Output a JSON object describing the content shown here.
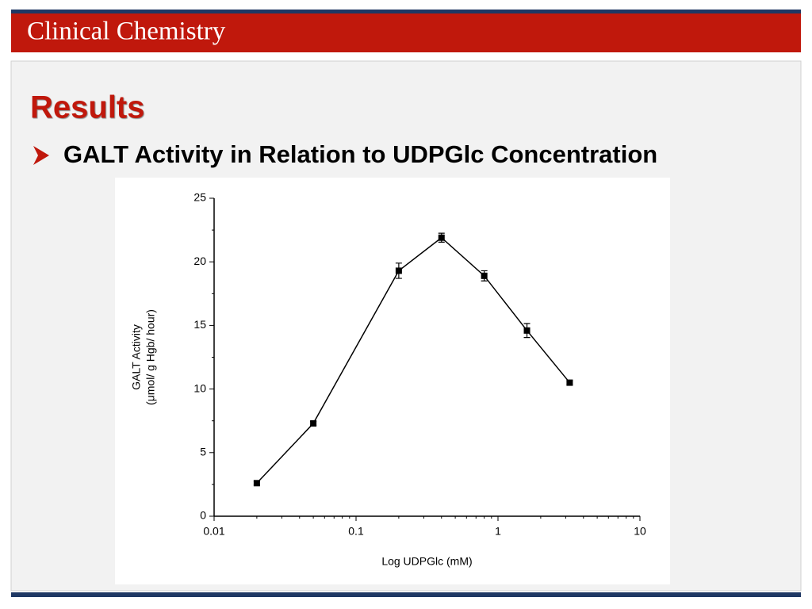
{
  "header": {
    "title": "Clinical Chemistry"
  },
  "slide": {
    "title": "Results",
    "bullet": "GALT Activity in Relation to UDPGlc Concentration"
  },
  "chart_data": {
    "type": "line",
    "xlabel": "Log UDPGlc (mM)",
    "ylabel": [
      "GALT Activity",
      "(μmol/ g Hgb/ hour)"
    ],
    "x": [
      0.02,
      0.05,
      0.2,
      0.4,
      0.8,
      1.6,
      3.2
    ],
    "series": [
      {
        "color": "#000000",
        "values": [
          2.6,
          7.3,
          19.3,
          21.9,
          18.9,
          14.6,
          10.5
        ],
        "errors": [
          0.15,
          0.15,
          0.6,
          0.35,
          0.4,
          0.55,
          0.15
        ]
      }
    ],
    "xlim": [
      0.01,
      10
    ],
    "xticks": [
      0.01,
      0.1,
      1,
      10
    ],
    "xscale": "log",
    "ylim": [
      0,
      25
    ],
    "yticks": [
      0,
      5,
      10,
      15,
      20,
      25
    ],
    "grid": false
  }
}
